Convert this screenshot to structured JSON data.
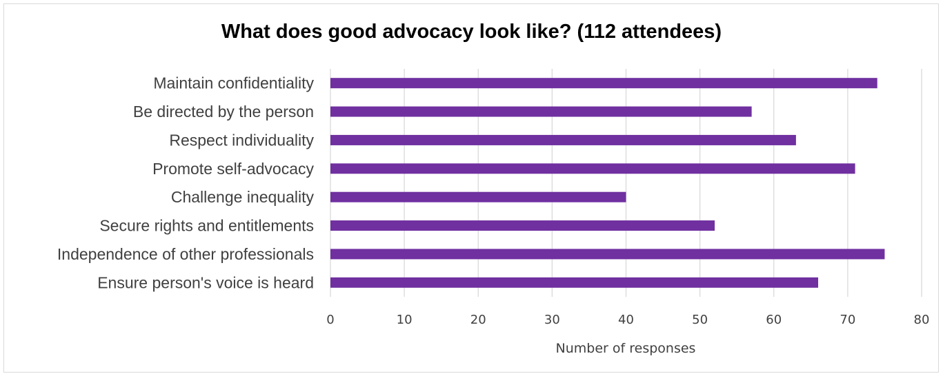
{
  "chart_data": {
    "type": "bar",
    "orientation": "horizontal",
    "title": "What does good advocacy look like? (112 attendees)",
    "xlabel": "Number of responses",
    "ylabel": "",
    "categories": [
      "Maintain confidentiality",
      "Be directed by the person",
      "Respect individuality",
      "Promote self-advocacy",
      "Challenge inequality",
      "Secure rights and entitlements",
      "Independence of other professionals",
      "Ensure person's voice is heard"
    ],
    "values": [
      74,
      57,
      63,
      71,
      40,
      52,
      75,
      66
    ],
    "xlim": [
      0,
      80
    ],
    "xticks": [
      "0",
      "10",
      "20",
      "30",
      "40",
      "50",
      "60",
      "70",
      "80"
    ],
    "grid": true,
    "legend": "none",
    "bar_color": "#7030a0"
  }
}
